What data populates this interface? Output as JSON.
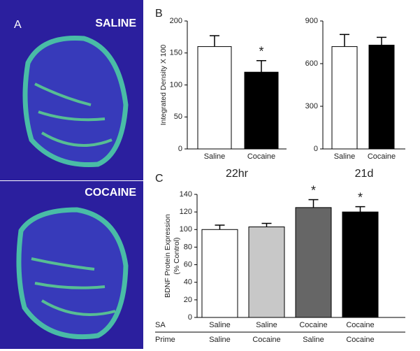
{
  "panel_a": {
    "label": "A",
    "image_labels": [
      "SALINE",
      "COCAINE"
    ]
  },
  "panel_labels": [
    "B",
    "C"
  ],
  "chart_data": [
    {
      "type": "bar",
      "ylabel": "Integrated Density X 100",
      "xlabel": "22hr",
      "categories": [
        "Saline",
        "Cocaine"
      ],
      "values": [
        160,
        120
      ],
      "errors": [
        17,
        18
      ],
      "colors": [
        "#ffffff",
        "#000000"
      ],
      "annotations": [
        null,
        "*"
      ],
      "ylim": [
        0,
        200
      ],
      "yticks": [
        0,
        50,
        100,
        150,
        200
      ]
    },
    {
      "type": "bar",
      "xlabel": "21d",
      "categories": [
        "Saline",
        "Cocaine"
      ],
      "values": [
        720,
        730
      ],
      "errors": [
        85,
        55
      ],
      "colors": [
        "#ffffff",
        "#000000"
      ],
      "ylim": [
        0,
        900
      ],
      "yticks": [
        0,
        300,
        600,
        900
      ]
    },
    {
      "type": "bar",
      "ylabel": [
        "BDNF Protein Expression",
        "(% Control)"
      ],
      "category_row_names": [
        "SA",
        "Prime"
      ],
      "categories": [
        "Saline",
        "Saline",
        "Cocaine",
        "Cocaine"
      ],
      "categories_2": [
        "Saline",
        "Cocaine",
        "Saline",
        "Cocaine"
      ],
      "values": [
        100,
        103,
        125,
        120
      ],
      "errors": [
        5,
        4,
        9,
        6
      ],
      "colors": [
        "#ffffff",
        "#c8c8c8",
        "#666666",
        "#000000"
      ],
      "annotations": [
        null,
        null,
        "*",
        "*"
      ],
      "ylim": [
        0,
        140
      ],
      "yticks": [
        0,
        20,
        40,
        60,
        80,
        100,
        120,
        140
      ]
    }
  ]
}
